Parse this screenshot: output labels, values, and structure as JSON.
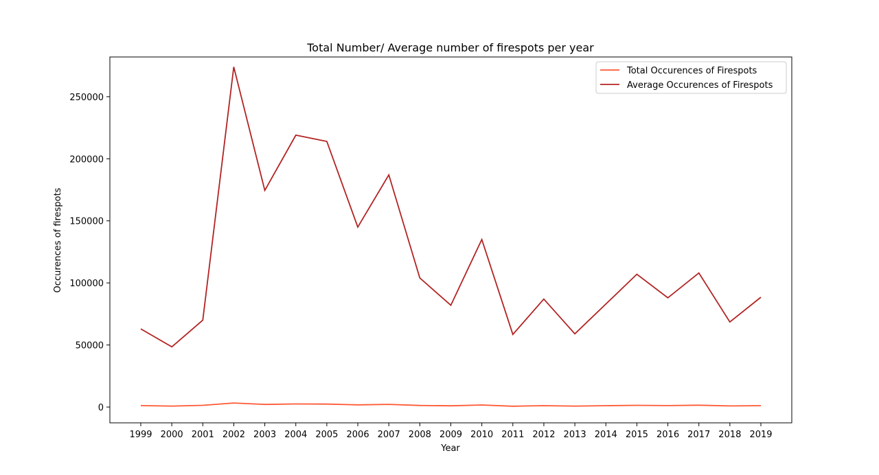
{
  "chart_data": {
    "type": "line",
    "title": "Total Number/ Average number of firespots per year",
    "xlabel": "Year",
    "ylabel": "Occurences of firespots",
    "x": [
      "1999",
      "2000",
      "2001",
      "2002",
      "2003",
      "2004",
      "2005",
      "2006",
      "2007",
      "2008",
      "2009",
      "2010",
      "2011",
      "2012",
      "2013",
      "2014",
      "2015",
      "2016",
      "2017",
      "2018",
      "2019"
    ],
    "ylim": [
      -12700,
      282000
    ],
    "yticks": [
      0,
      50000,
      100000,
      150000,
      200000,
      250000
    ],
    "series": [
      {
        "name": "Total Occurences of Firespots",
        "color": "#ff5733",
        "values": [
          1200,
          800,
          1400,
          3300,
          2100,
          2500,
          2400,
          1800,
          2200,
          1300,
          1000,
          1700,
          700,
          1100,
          800,
          1100,
          1400,
          1200,
          1500,
          900,
          1100
        ]
      },
      {
        "name": "Average Occurences of Firespots",
        "color": "#b22222",
        "values": [
          63000,
          48500,
          70000,
          274000,
          174500,
          219000,
          214000,
          145000,
          187000,
          104000,
          82000,
          135000,
          58500,
          87000,
          59000,
          83000,
          107000,
          88000,
          108000,
          68500,
          88500
        ]
      }
    ],
    "legend": "top-right",
    "grid": false
  }
}
